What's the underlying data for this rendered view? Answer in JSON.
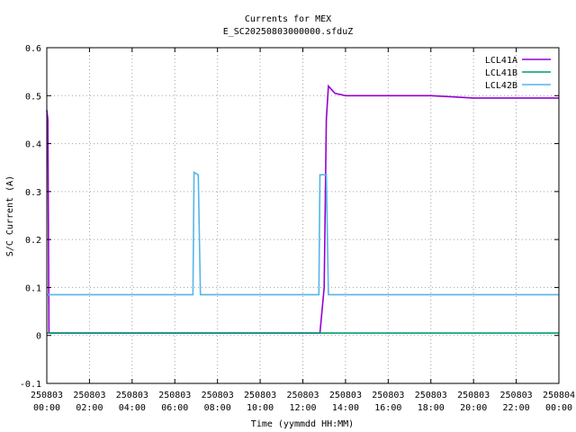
{
  "chart_data": {
    "type": "line",
    "title": "Currents for MEX",
    "subtitle": "E_SC20250803000000.sfduZ",
    "xlabel": "Time (yymmdd HH:MM)",
    "ylabel": "S/C Current (A)",
    "xlim": [
      0,
      24
    ],
    "ylim": [
      -0.1,
      0.6
    ],
    "grid": true,
    "legend_position": "top-right",
    "x_ticks": [
      {
        "value": 0,
        "date": "250803",
        "time": "00:00"
      },
      {
        "value": 2,
        "date": "250803",
        "time": "02:00"
      },
      {
        "value": 4,
        "date": "250803",
        "time": "04:00"
      },
      {
        "value": 6,
        "date": "250803",
        "time": "06:00"
      },
      {
        "value": 8,
        "date": "250803",
        "time": "08:00"
      },
      {
        "value": 10,
        "date": "250803",
        "time": "10:00"
      },
      {
        "value": 12,
        "date": "250803",
        "time": "12:00"
      },
      {
        "value": 14,
        "date": "250803",
        "time": "14:00"
      },
      {
        "value": 16,
        "date": "250803",
        "time": "16:00"
      },
      {
        "value": 18,
        "date": "250803",
        "time": "18:00"
      },
      {
        "value": 20,
        "date": "250803",
        "time": "20:00"
      },
      {
        "value": 22,
        "date": "250803",
        "time": "22:00"
      },
      {
        "value": 24,
        "date": "250804",
        "time": "00:00"
      }
    ],
    "y_ticks": [
      {
        "value": -0.1,
        "label": "-0.1"
      },
      {
        "value": 0,
        "label": "0"
      },
      {
        "value": 0.1,
        "label": "0.1"
      },
      {
        "value": 0.2,
        "label": "0.2"
      },
      {
        "value": 0.3,
        "label": "0.3"
      },
      {
        "value": 0.4,
        "label": "0.4"
      },
      {
        "value": 0.5,
        "label": "0.5"
      },
      {
        "value": 0.6,
        "label": "0.6"
      }
    ],
    "series": [
      {
        "name": "LCL41A",
        "color": "#9400d3",
        "x": [
          0,
          0.05,
          0.1,
          0.15,
          0.2,
          1,
          3,
          5,
          7,
          9,
          11,
          12.8,
          13.0,
          13.1,
          13.2,
          13.5,
          14,
          16,
          18,
          20,
          22,
          24
        ],
        "y": [
          0.47,
          0.45,
          0.005,
          0.005,
          0.005,
          0.005,
          0.005,
          0.005,
          0.005,
          0.005,
          0.005,
          0.005,
          0.1,
          0.45,
          0.52,
          0.505,
          0.5,
          0.5,
          0.5,
          0.495,
          0.495,
          0.495
        ]
      },
      {
        "name": "LCL41B",
        "color": "#009e73",
        "x": [
          0,
          2,
          4,
          6,
          8,
          10,
          12,
          14,
          16,
          18,
          20,
          22,
          24
        ],
        "y": [
          0.005,
          0.005,
          0.005,
          0.005,
          0.005,
          0.005,
          0.005,
          0.005,
          0.005,
          0.005,
          0.005,
          0.005,
          0.005
        ]
      },
      {
        "name": "LCL42B",
        "color": "#56b4e9",
        "x": [
          0,
          2,
          4,
          6,
          6.85,
          6.9,
          7.1,
          7.2,
          7.3,
          12,
          12.75,
          12.8,
          13.1,
          13.2,
          13.3,
          16,
          20,
          24
        ],
        "y": [
          0.085,
          0.085,
          0.085,
          0.085,
          0.085,
          0.34,
          0.335,
          0.085,
          0.085,
          0.085,
          0.085,
          0.335,
          0.335,
          0.085,
          0.085,
          0.085,
          0.085,
          0.085
        ]
      }
    ]
  }
}
